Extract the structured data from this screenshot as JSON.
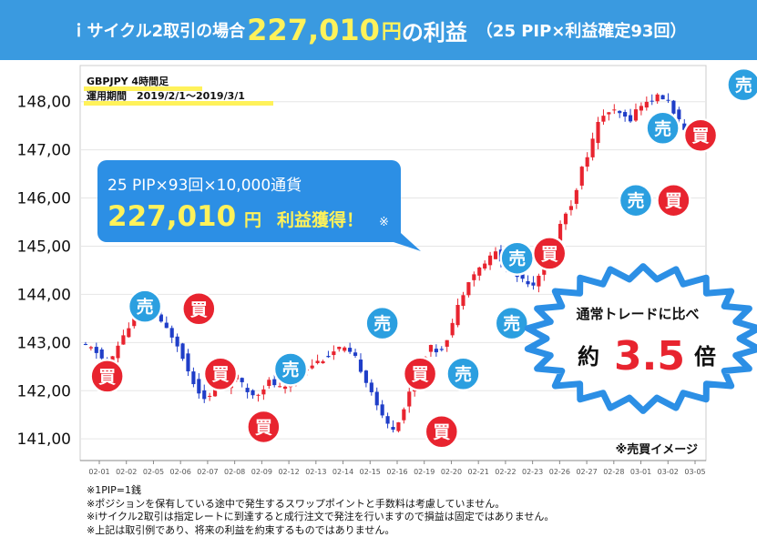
{
  "banner": {
    "prefix": "ｉサイクル2取引の場合",
    "amount": "227,010",
    "yen": "円",
    "profit": "の利益",
    "suffix": "（25 PIP×利益確定93回）"
  },
  "chart_data": {
    "type": "candlestick",
    "info": {
      "line1": "GBPJPY 4時間足",
      "line2": "運用期間　2019/2/1〜2019/3/1"
    },
    "y_ticks": [
      "148,00",
      "147,00",
      "146,00",
      "145,00",
      "144,00",
      "143,00",
      "142,00",
      "141,00"
    ],
    "y_tick_values": [
      148,
      147,
      146,
      145,
      144,
      143,
      142,
      141
    ],
    "ylim": [
      140.55,
      148.75
    ],
    "x_ticks": [
      "02-01",
      "02-02",
      "02-05",
      "02-06",
      "02-07",
      "02-08",
      "02-09",
      "02-12",
      "02-13",
      "02-14",
      "02-15",
      "02-16",
      "02-19",
      "02-20",
      "02-21",
      "02-22",
      "02-23",
      "02-26",
      "02-27",
      "02-28",
      "03-01",
      "03-02",
      "03-05"
    ],
    "bar_count": 115,
    "price_path": [
      [
        0,
        142.95
      ],
      [
        3,
        142.85
      ],
      [
        6,
        142.5
      ],
      [
        9,
        143.15
      ],
      [
        11,
        143.4
      ],
      [
        13,
        143.9
      ],
      [
        15,
        143.75
      ],
      [
        17,
        143.4
      ],
      [
        19,
        143.2
      ],
      [
        21,
        142.9
      ],
      [
        23,
        142.35
      ],
      [
        25,
        142.0
      ],
      [
        27,
        141.8
      ],
      [
        29,
        142.2
      ],
      [
        31,
        142.1
      ],
      [
        33,
        142.3
      ],
      [
        35,
        142.0
      ],
      [
        37,
        141.9
      ],
      [
        40,
        142.2
      ],
      [
        43,
        142.0
      ],
      [
        46,
        142.35
      ],
      [
        49,
        142.55
      ],
      [
        52,
        142.7
      ],
      [
        55,
        142.9
      ],
      [
        58,
        142.7
      ],
      [
        60,
        142.3
      ],
      [
        62,
        141.9
      ],
      [
        64,
        141.4
      ],
      [
        66,
        141.2
      ],
      [
        68,
        141.5
      ],
      [
        70,
        142.1
      ],
      [
        72,
        142.6
      ],
      [
        74,
        142.9
      ],
      [
        76,
        142.8
      ],
      [
        78,
        143.2
      ],
      [
        80,
        143.8
      ],
      [
        82,
        144.3
      ],
      [
        84,
        144.5
      ],
      [
        86,
        144.7
      ],
      [
        88,
        144.9
      ],
      [
        90,
        144.5
      ],
      [
        92,
        144.4
      ],
      [
        94,
        144.3
      ],
      [
        96,
        144.2
      ],
      [
        98,
        144.7
      ],
      [
        100,
        145.0
      ],
      [
        102,
        145.6
      ],
      [
        104,
        145.9
      ],
      [
        106,
        146.6
      ],
      [
        108,
        147.1
      ],
      [
        110,
        147.7
      ],
      [
        112,
        147.8
      ],
      [
        114,
        147.75
      ],
      [
        116,
        147.6
      ],
      [
        118,
        147.9
      ],
      [
        120,
        148.0
      ],
      [
        122,
        148.1
      ],
      [
        124,
        148.05
      ],
      [
        126,
        147.7
      ],
      [
        128,
        147.3
      ],
      [
        130,
        147.2
      ]
    ],
    "markers": [
      {
        "label": "売",
        "color": "#2b9fe0",
        "value": 143.75,
        "bar": 11
      },
      {
        "label": "買",
        "color": "#e8242f",
        "value": 143.7,
        "bar": 21
      },
      {
        "label": "買",
        "color": "#e8242f",
        "value": 142.3,
        "bar": 4
      },
      {
        "label": "買",
        "color": "#e8242f",
        "value": 142.35,
        "bar": 25
      },
      {
        "label": "売",
        "color": "#2b9fe0",
        "value": 142.45,
        "bar": 38
      },
      {
        "label": "買",
        "color": "#e8242f",
        "value": 141.25,
        "bar": 33
      },
      {
        "label": "売",
        "color": "#2b9fe0",
        "value": 143.4,
        "bar": 55
      },
      {
        "label": "買",
        "color": "#e8242f",
        "value": 142.35,
        "bar": 62
      },
      {
        "label": "売",
        "color": "#2b9fe0",
        "value": 142.35,
        "bar": 70
      },
      {
        "label": "買",
        "color": "#e8242f",
        "value": 141.15,
        "bar": 66
      },
      {
        "label": "売",
        "color": "#2b9fe0",
        "value": 143.4,
        "bar": 79
      },
      {
        "label": "売",
        "color": "#2b9fe0",
        "value": 144.75,
        "bar": 80
      },
      {
        "label": "買",
        "color": "#e8242f",
        "value": 144.85,
        "bar": 86
      },
      {
        "label": "売",
        "color": "#2b9fe0",
        "value": 145.95,
        "bar": 102
      },
      {
        "label": "買",
        "color": "#e8242f",
        "value": 145.95,
        "bar": 109
      },
      {
        "label": "売",
        "color": "#2b9fe0",
        "value": 147.45,
        "bar": 107
      },
      {
        "label": "買",
        "color": "#e8242f",
        "value": 147.3,
        "bar": 114
      },
      {
        "label": "売",
        "color": "#2b9fe0",
        "value": 148.35,
        "bar": 122
      }
    ],
    "colors": {
      "up": "#e8242f",
      "down": "#1f3ec8",
      "axis_text": "#111111",
      "x_axis_text": "#555555",
      "grid": "#cccccc",
      "callout": "#2c8fe5",
      "burst_fill": "#ffffff",
      "burst_stroke": "#2c8fe5",
      "highlight": "#fff25a",
      "accent": "#e8242f"
    },
    "callout": {
      "line1": "25 PIP×93回×10,000通貨",
      "amount": "227,010",
      "yen": "円",
      "tail": "利益獲得！",
      "mark": "※"
    },
    "burst": {
      "line1": "通常トレードに比べ",
      "pre": "約",
      "num": "3.5",
      "post": "倍"
    },
    "image_note": "※売買イメージ"
  },
  "notes": [
    "※1PIP=1銭",
    "※ポジションを保有している途中で発生するスワップポイントと手数料は考慮していません。",
    "※iサイクル2取引は指定レートに到達すると成行注文で発注を行いますので損益は固定ではありません。",
    "※上記は取引例であり、将来の利益を約束するものではありません。"
  ]
}
